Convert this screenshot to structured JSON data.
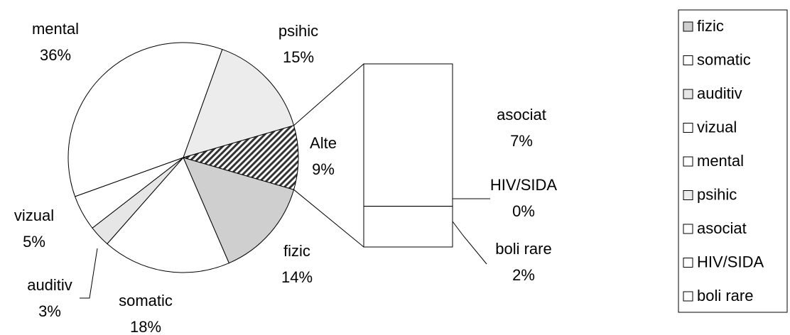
{
  "chart_data": {
    "type": "pie-of-bar",
    "categories": [
      "fizic",
      "somatic",
      "auditiv",
      "vizual",
      "mental",
      "psihic",
      "asociat",
      "HIV/SIDA",
      "boli rare"
    ],
    "values": [
      14,
      18,
      3,
      5,
      36,
      15,
      7,
      0,
      2
    ],
    "value_labels": [
      "14%",
      "18%",
      "3%",
      "5%",
      "36%",
      "15%",
      "7%",
      "0%",
      "2%"
    ],
    "colors": [
      "#cfcfcf",
      "#ffffff",
      "#e6e6e6",
      "#ffffff",
      "#ffffff",
      "#ececec",
      "#ffffff",
      "#ffffff",
      "#ffffff"
    ],
    "other_label": "Alte",
    "other_value": 9,
    "other_value_label": "9%",
    "other_color": "#333333",
    "pie_count": 6
  }
}
